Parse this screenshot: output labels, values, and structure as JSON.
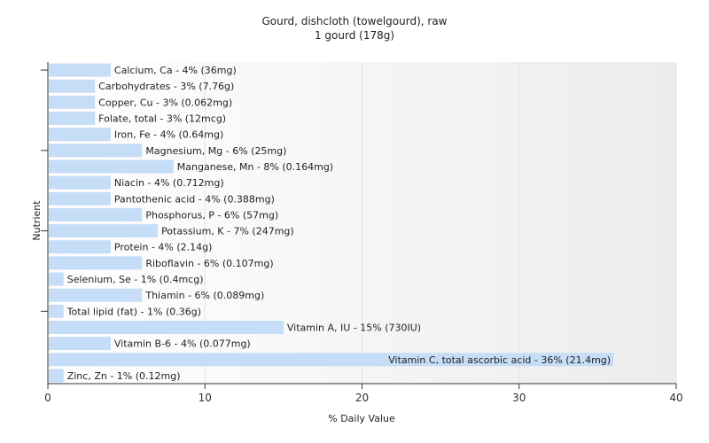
{
  "chart_data": {
    "type": "bar",
    "orientation": "horizontal",
    "title": "Gourd, dishcloth (towelgourd), raw",
    "subtitle": "1 gourd (178g)",
    "xlabel": "% Daily Value",
    "ylabel": "Nutrient",
    "xlim": [
      0,
      40
    ],
    "xticks": [
      0,
      10,
      20,
      30,
      40
    ],
    "grid": true,
    "legend": "none",
    "colors": {
      "bar": "#c6ddf7",
      "grid": "#e4e4e4",
      "axis": "#333333",
      "plot_bg_left": "#ffffff",
      "plot_bg_right": "#ececec"
    },
    "categories": [
      "Calcium, Ca",
      "Carbohydrates",
      "Copper, Cu",
      "Folate, total",
      "Iron, Fe",
      "Magnesium, Mg",
      "Manganese, Mn",
      "Niacin",
      "Pantothenic acid",
      "Phosphorus, P",
      "Potassium, K",
      "Protein",
      "Riboflavin",
      "Selenium, Se",
      "Thiamin",
      "Total lipid (fat)",
      "Vitamin A, IU",
      "Vitamin B-6",
      "Vitamin C, total ascorbic acid",
      "Zinc, Zn"
    ],
    "values": [
      4,
      3,
      3,
      3,
      4,
      6,
      8,
      4,
      4,
      6,
      7,
      4,
      6,
      1,
      6,
      1,
      15,
      4,
      36,
      1
    ],
    "labels": [
      "Calcium, Ca - 4% (36mg)",
      "Carbohydrates - 3% (7.76g)",
      "Copper, Cu - 3% (0.062mg)",
      "Folate, total - 3% (12mcg)",
      "Iron, Fe - 4% (0.64mg)",
      "Magnesium, Mg - 6% (25mg)",
      "Manganese, Mn - 8% (0.164mg)",
      "Niacin - 4% (0.712mg)",
      "Pantothenic acid - 4% (0.388mg)",
      "Phosphorus, P - 6% (57mg)",
      "Potassium, K - 7% (247mg)",
      "Protein - 4% (2.14g)",
      "Riboflavin - 6% (0.107mg)",
      "Selenium, Se - 1% (0.4mcg)",
      "Thiamin - 6% (0.089mg)",
      "Total lipid (fat) - 1% (0.36g)",
      "Vitamin A, IU - 15% (730IU)",
      "Vitamin B-6 - 4% (0.077mg)",
      "Vitamin C, total ascorbic acid - 36% (21.4mg)",
      "Zinc, Zn - 1% (0.12mg)"
    ]
  }
}
